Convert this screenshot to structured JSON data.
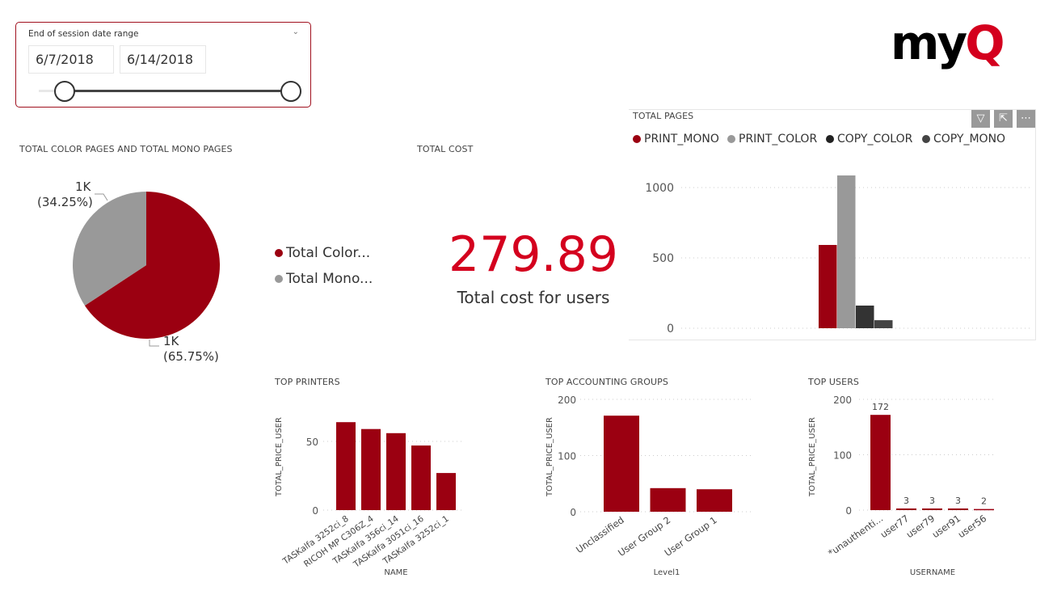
{
  "slicer": {
    "title": "End of session date range",
    "start_date": "6/7/2018",
    "end_date": "6/14/2018",
    "range_fraction": [
      0.0,
      1.0
    ]
  },
  "logo": {
    "text": "myQ",
    "colors": {
      "my": "#000000",
      "q": "#d4001e"
    }
  },
  "total_cost": {
    "title": "TOTAL COST",
    "value": "279.89",
    "label": "Total cost for users",
    "color": "#d4001e"
  },
  "toolbar": {
    "filter_icon": "filter-icon",
    "focus_icon": "focus-mode-icon",
    "more_icon": "more-options-icon"
  },
  "chart_data": [
    {
      "type": "pie",
      "title": "TOTAL COLOR PAGES AND TOTAL MONO PAGES",
      "legend": [
        "Total Color...",
        "Total Mono..."
      ],
      "legend_placement": "right",
      "slices": [
        {
          "name": "Total Color...",
          "percent": 65.75,
          "label": "1K",
          "pct_label": "(65.75%)",
          "color": "#9b0011"
        },
        {
          "name": "Total Mono...",
          "percent": 34.25,
          "label": "1K",
          "pct_label": "(34.25%)",
          "color": "#999999"
        }
      ]
    },
    {
      "type": "bar",
      "title": "TOTAL PAGES",
      "legend_placement": "top-left",
      "series": [
        {
          "name": "PRINT_MONO",
          "values": [
            592
          ],
          "color": "#9b0011"
        },
        {
          "name": "PRINT_COLOR",
          "values": [
            1086
          ],
          "color": "#999999"
        },
        {
          "name": "COPY_COLOR",
          "values": [
            161
          ],
          "color": "#333333"
        },
        {
          "name": "COPY_MONO",
          "values": [
            57
          ],
          "color": "#444444"
        }
      ],
      "yticks": [
        "0",
        "500",
        "1000"
      ],
      "ylim": [
        0,
        1100
      ],
      "grid": true
    },
    {
      "type": "bar",
      "title": "TOP PRINTERS",
      "xlabel": "NAME",
      "ylabel": "TOTAL_PRICE_USER",
      "categories": [
        "TASKalfa 3252ci_8",
        "RICOH MP C306Z_4",
        "TASKalfa 356ci_14",
        "TASKalfa 3051ci_16",
        "TASKalfa 3252ci_1"
      ],
      "values": [
        64,
        59,
        56,
        47,
        27
      ],
      "yticks": [
        "0",
        "50"
      ],
      "ylim": [
        0,
        70
      ],
      "grid": true,
      "color": "#9b0011"
    },
    {
      "type": "bar",
      "title": "TOP ACCOUNTING GROUPS",
      "xlabel": "Level1",
      "ylabel": "TOTAL_PRICE_USER",
      "categories": [
        "Unclassified",
        "User Group 2",
        "User Group 1"
      ],
      "values": [
        171,
        42,
        40
      ],
      "yticks": [
        "0",
        "100",
        "200"
      ],
      "ylim": [
        0,
        200
      ],
      "grid": true,
      "color": "#9b0011"
    },
    {
      "type": "bar",
      "title": "TOP USERS",
      "xlabel": "USERNAME",
      "ylabel": "TOTAL_PRICE_USER",
      "categories": [
        "*unauthenti...",
        "user77",
        "user79",
        "user91",
        "user56"
      ],
      "values": [
        172,
        3,
        3,
        3,
        2
      ],
      "data_labels": [
        "172",
        "3",
        "3",
        "3",
        "2"
      ],
      "yticks": [
        "0",
        "100",
        "200"
      ],
      "ylim": [
        0,
        200
      ],
      "grid": true,
      "color": "#9b0011"
    }
  ]
}
